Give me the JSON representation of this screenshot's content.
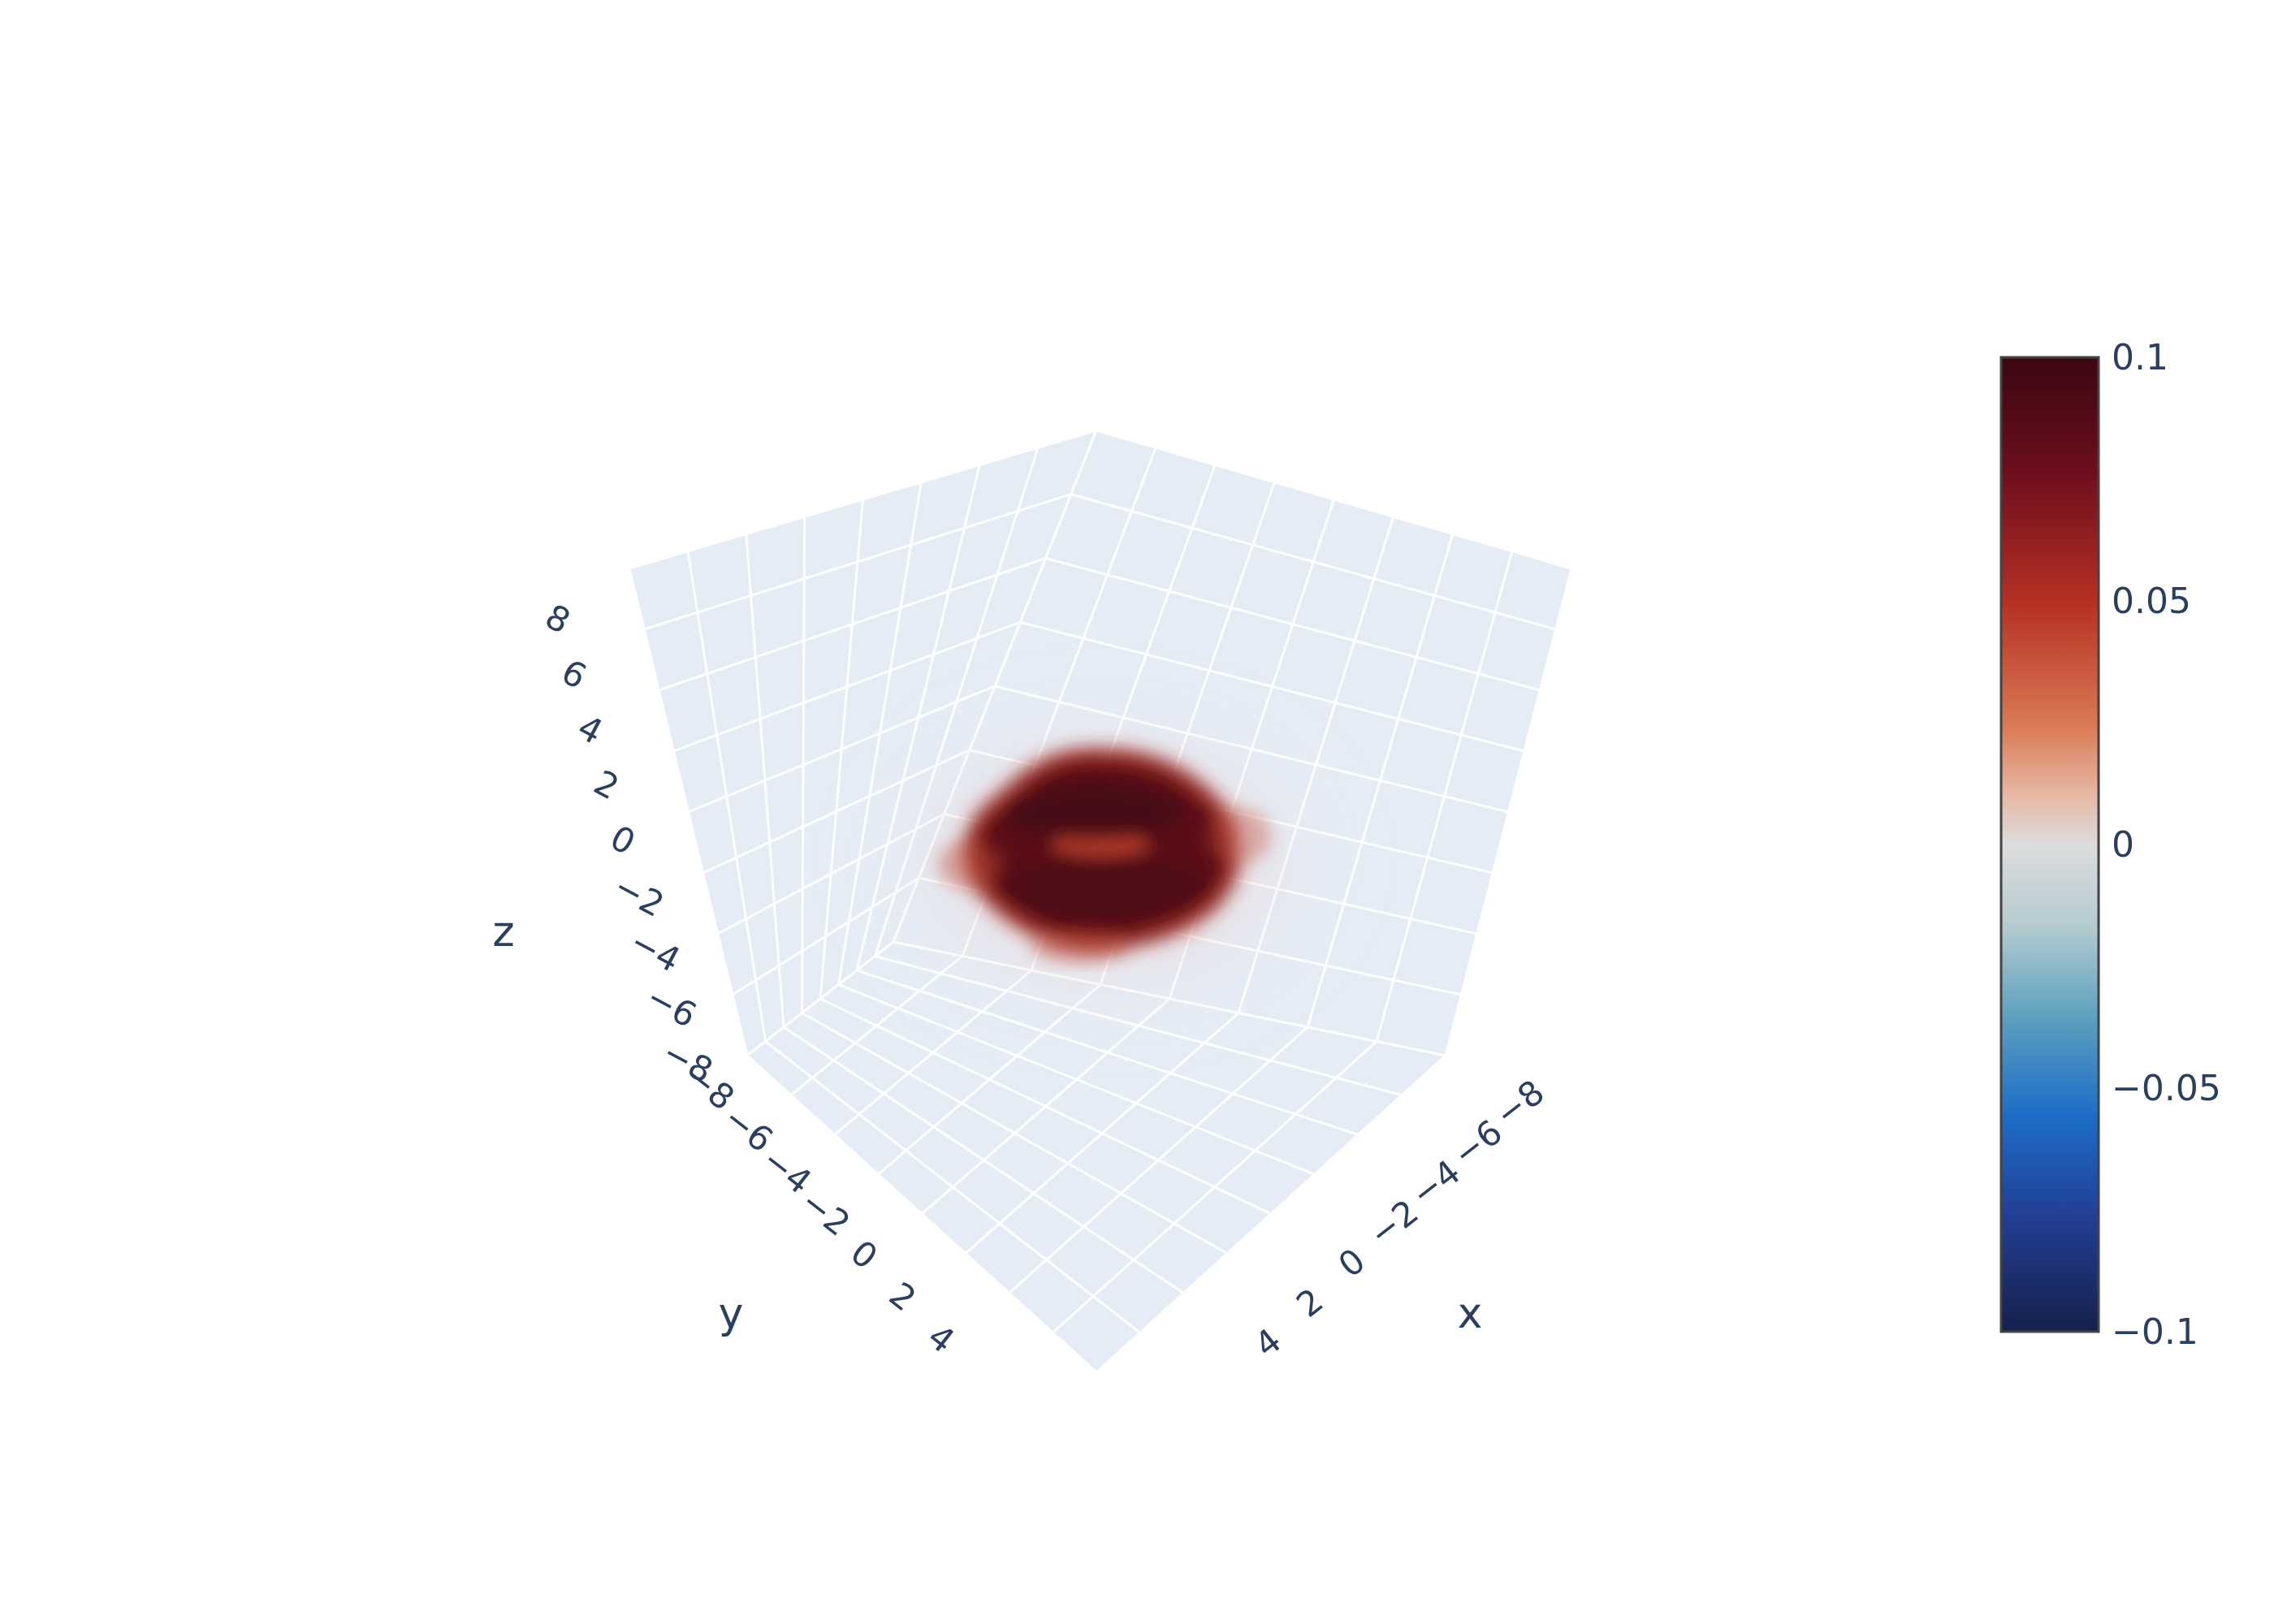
{
  "chart_data": {
    "type": "volume",
    "title": "",
    "axes": {
      "x": {
        "label": "x",
        "ticks": [
          "−8",
          "−6",
          "−4",
          "−2",
          "0",
          "2",
          "4"
        ],
        "range": [
          -8,
          4
        ]
      },
      "y": {
        "label": "y",
        "ticks": [
          "−8",
          "−6",
          "−4",
          "−2",
          "0",
          "2",
          "4"
        ],
        "range": [
          -8,
          4
        ]
      },
      "z": {
        "label": "z",
        "ticks": [
          "−8",
          "−6",
          "−4",
          "−2",
          "0",
          "2",
          "4",
          "6",
          "8"
        ],
        "range": [
          -8,
          8
        ]
      }
    },
    "colorbar": {
      "range": [
        -0.1,
        0.1
      ],
      "ticks": [
        "0.1",
        "0.05",
        "0",
        "−0.05",
        "−0.1"
      ],
      "tick_values": [
        0.1,
        0.05,
        0,
        -0.05,
        -0.1
      ],
      "colors": [
        "#fddbc7",
        "#d6604d",
        "#b2182b",
        "#67001f",
        "#440a16",
        "#2166ac",
        "#17264d"
      ]
    },
    "volume": {
      "shape": "torus",
      "center": [
        0,
        0,
        0
      ],
      "value_level": 0.1,
      "color": "#5a0d18"
    },
    "background": "#e5ecf6",
    "grid": true
  }
}
